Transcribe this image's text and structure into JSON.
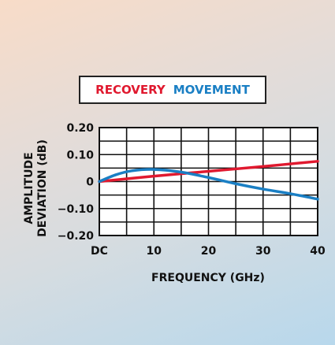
{
  "colors": {
    "recovery": "#e0192f",
    "movement": "#1a7fc4",
    "grid": "#111111"
  },
  "legend": {
    "recovery_label": "RECOVERY",
    "movement_label": "MOVEMENT"
  },
  "chart_data": {
    "type": "line",
    "xlabel": "FREQUENCY (GHz)",
    "ylabel_line1": "AMPLITUDE",
    "ylabel_line2": "DEVIATION (dB)",
    "xlim": [
      0,
      40
    ],
    "ylim": [
      -0.2,
      0.2
    ],
    "grid": true,
    "legend_position": "top",
    "x_ticks": [
      {
        "value": 0,
        "label": "DC"
      },
      {
        "value": 10,
        "label": "10"
      },
      {
        "value": 20,
        "label": "20"
      },
      {
        "value": 30,
        "label": "30"
      },
      {
        "value": 40,
        "label": "40"
      }
    ],
    "y_ticks": [
      {
        "value": 0.2,
        "label": "0.20"
      },
      {
        "value": 0.1,
        "label": "0.10"
      },
      {
        "value": 0,
        "label": "0"
      },
      {
        "value": -0.1,
        "label": "−0.10"
      },
      {
        "value": -0.2,
        "label": "−0.20"
      }
    ],
    "series": [
      {
        "name": "RECOVERY",
        "color": "#e0192f",
        "x": [
          0,
          10,
          20,
          30,
          40
        ],
        "y": [
          0,
          0.02,
          0.038,
          0.056,
          0.075
        ]
      },
      {
        "name": "MOVEMENT",
        "color": "#1a7fc4",
        "x": [
          0,
          3,
          6,
          10,
          15,
          20,
          25,
          30,
          35,
          40
        ],
        "y": [
          0,
          0.025,
          0.04,
          0.045,
          0.035,
          0.015,
          -0.008,
          -0.028,
          -0.045,
          -0.065
        ]
      }
    ]
  }
}
